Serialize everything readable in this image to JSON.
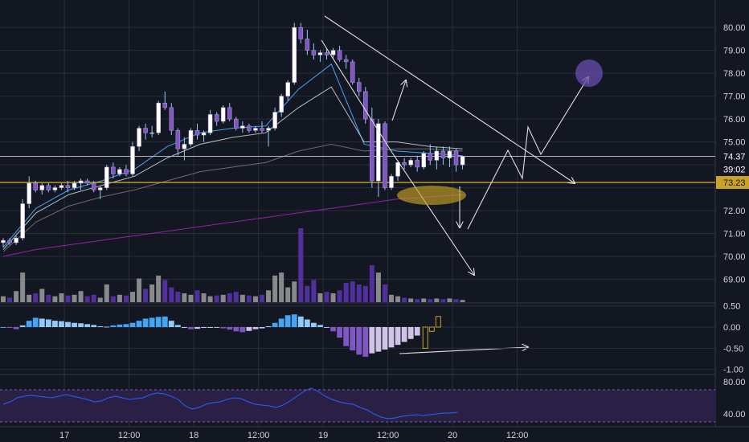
{
  "chart_data": {
    "type": "candlestick",
    "colors": {
      "background": "#131722",
      "grid": "#2a2e39",
      "up_body": "#ffffff",
      "down_body": "#7e57c2",
      "wick": "#90caf9",
      "axis_text": "#d1d4dc",
      "support_line": "#c9a227",
      "price_line": "#b2b5be",
      "annotation": "#e0e0e0",
      "volume_up": "#9e9e9e",
      "volume_down": "#5e35b1",
      "macd_pos_strong": "#42a5f5",
      "macd_pos_weak": "#90caf9",
      "macd_neg_strong": "#7e57c2",
      "macd_neg_weak": "#d1c4e9",
      "rsi_line": "#2962ff",
      "rsi_band": "#2a1f45"
    },
    "price_axis": {
      "ylim": [
        68.0,
        81.2
      ],
      "ticks": [
        "80.00",
        "79.00",
        "78.00",
        "77.00",
        "76.00",
        "75.00",
        "74.00",
        "73.00",
        "72.00",
        "71.00",
        "70.00",
        "69.00"
      ],
      "last_price_label": "74.37",
      "countdown_label": "39:02",
      "support_label": "73.23",
      "current_price": 74.37,
      "support_price": 73.23
    },
    "time_axis": {
      "labels": [
        "17",
        "12:00",
        "18",
        "12:00",
        "19",
        "12:00",
        "20",
        "12:00"
      ],
      "label_positions": [
        2,
        12,
        22,
        32,
        42,
        52,
        62,
        72
      ]
    },
    "candles": [
      [
        70.6,
        70.8,
        70.4,
        70.7
      ],
      [
        70.7,
        70.8,
        70.5,
        70.6
      ],
      [
        70.6,
        70.9,
        70.5,
        70.8
      ],
      [
        70.8,
        72.5,
        70.7,
        72.3
      ],
      [
        72.3,
        73.5,
        72.1,
        73.2
      ],
      [
        73.2,
        73.3,
        72.8,
        72.9
      ],
      [
        72.9,
        73.2,
        72.7,
        73.1
      ],
      [
        73.1,
        73.2,
        72.8,
        72.9
      ],
      [
        72.9,
        73.1,
        72.8,
        73.0
      ],
      [
        73.0,
        73.2,
        72.9,
        73.1
      ],
      [
        73.1,
        73.3,
        72.8,
        73.0
      ],
      [
        73.0,
        73.3,
        72.9,
        73.2
      ],
      [
        73.2,
        73.4,
        72.9,
        73.3
      ],
      [
        73.3,
        73.4,
        73.1,
        73.2
      ],
      [
        73.2,
        73.3,
        72.8,
        72.9
      ],
      [
        72.9,
        73.1,
        72.5,
        73.0
      ],
      [
        73.0,
        74.0,
        72.9,
        73.9
      ],
      [
        73.9,
        74.1,
        73.4,
        73.6
      ],
      [
        73.6,
        73.9,
        73.5,
        73.8
      ],
      [
        73.8,
        74.0,
        73.5,
        73.6
      ],
      [
        73.6,
        75.0,
        73.5,
        74.8
      ],
      [
        74.8,
        75.7,
        74.6,
        75.6
      ],
      [
        75.6,
        75.8,
        75.1,
        75.4
      ],
      [
        75.4,
        75.7,
        75.2,
        75.4
      ],
      [
        75.4,
        76.8,
        75.3,
        76.7
      ],
      [
        76.7,
        77.2,
        76.4,
        76.5
      ],
      [
        76.5,
        76.7,
        75.3,
        75.5
      ],
      [
        75.5,
        75.6,
        74.4,
        74.7
      ],
      [
        74.7,
        75.2,
        74.2,
        74.9
      ],
      [
        74.9,
        75.6,
        74.8,
        75.5
      ],
      [
        75.5,
        75.8,
        75.1,
        75.3
      ],
      [
        75.3,
        75.5,
        75.0,
        75.4
      ],
      [
        75.4,
        76.4,
        75.3,
        76.2
      ],
      [
        76.2,
        76.3,
        75.7,
        75.9
      ],
      [
        75.9,
        76.6,
        75.8,
        76.5
      ],
      [
        76.5,
        76.7,
        75.9,
        76.0
      ],
      [
        76.0,
        76.1,
        75.5,
        75.6
      ],
      [
        75.6,
        75.9,
        75.4,
        75.7
      ],
      [
        75.7,
        75.8,
        75.4,
        75.5
      ],
      [
        75.5,
        75.7,
        75.4,
        75.6
      ],
      [
        75.6,
        75.9,
        75.4,
        75.5
      ],
      [
        75.5,
        75.7,
        74.8,
        75.6
      ],
      [
        75.6,
        76.5,
        75.5,
        76.3
      ],
      [
        76.3,
        77.1,
        76.1,
        77.0
      ],
      [
        77.0,
        77.7,
        76.8,
        77.6
      ],
      [
        77.6,
        80.2,
        77.5,
        80.0
      ],
      [
        80.0,
        80.2,
        79.3,
        79.5
      ],
      [
        79.5,
        79.9,
        78.8,
        79.0
      ],
      [
        79.0,
        79.3,
        78.6,
        78.8
      ],
      [
        78.8,
        79.0,
        78.5,
        78.9
      ],
      [
        78.9,
        79.1,
        78.6,
        78.8
      ],
      [
        78.8,
        79.1,
        78.6,
        79.0
      ],
      [
        79.0,
        79.2,
        78.5,
        78.6
      ],
      [
        78.6,
        78.8,
        78.2,
        78.5
      ],
      [
        78.5,
        78.6,
        77.5,
        77.6
      ],
      [
        77.6,
        77.8,
        77.0,
        77.2
      ],
      [
        77.2,
        77.4,
        75.8,
        76.0
      ],
      [
        76.0,
        76.5,
        73.0,
        73.3
      ],
      [
        73.3,
        76.0,
        72.6,
        75.8
      ],
      [
        75.8,
        75.9,
        72.9,
        73.0
      ],
      [
        73.0,
        73.6,
        72.9,
        73.5
      ],
      [
        73.5,
        74.2,
        73.3,
        74.1
      ],
      [
        74.1,
        74.3,
        73.8,
        74.0
      ],
      [
        74.0,
        74.3,
        73.9,
        74.2
      ],
      [
        74.2,
        74.4,
        73.7,
        73.9
      ],
      [
        73.9,
        74.6,
        73.8,
        74.5
      ],
      [
        74.5,
        74.9,
        74.0,
        74.2
      ],
      [
        74.2,
        74.8,
        73.8,
        74.6
      ],
      [
        74.6,
        74.8,
        74.0,
        74.3
      ],
      [
        74.3,
        74.8,
        73.9,
        74.6
      ],
      [
        74.6,
        74.7,
        73.7,
        74.0
      ],
      [
        74.0,
        74.4,
        73.8,
        74.37
      ]
    ],
    "moving_averages": [
      {
        "color": "#42a5f5",
        "values": [
          70.4,
          72.1,
          72.9,
          73.3,
          73.8,
          74.8,
          75.4,
          75.6,
          75.7,
          77.3,
          78.4,
          74.9,
          74.6,
          74.5,
          74.4
        ]
      },
      {
        "color": "#b0bec5",
        "values": [
          70.3,
          71.9,
          72.7,
          73.1,
          73.5,
          74.3,
          74.9,
          75.2,
          75.4,
          76.5,
          77.4,
          75.0,
          75.0,
          74.8,
          74.7
        ]
      },
      {
        "color": "#6d6d6d",
        "values": [
          70.2,
          71.5,
          72.2,
          72.6,
          72.9,
          73.3,
          73.7,
          73.9,
          74.1,
          74.6,
          74.9,
          74.6,
          74.7,
          74.7,
          74.6
        ]
      },
      {
        "color": "#8e24aa",
        "values": [
          70.0,
          70.3,
          70.5,
          70.7,
          70.9,
          71.1,
          71.3,
          71.5,
          71.7,
          71.9,
          72.1,
          72.3,
          72.5,
          72.6,
          72.7
        ]
      }
    ],
    "volume": [
      8,
      6,
      15,
      40,
      10,
      12,
      18,
      10,
      8,
      12,
      9,
      10,
      15,
      8,
      10,
      6,
      24,
      8,
      10,
      9,
      14,
      32,
      18,
      24,
      36,
      30,
      20,
      14,
      12,
      10,
      16,
      12,
      8,
      9,
      10,
      12,
      14,
      10,
      9,
      8,
      10,
      16,
      36,
      40,
      20,
      28,
      100,
      22,
      30,
      12,
      14,
      12,
      16,
      26,
      28,
      24,
      22,
      50,
      40,
      24,
      10,
      8,
      6,
      5,
      4,
      5,
      4,
      5,
      4,
      5,
      4,
      3
    ],
    "macd_axis": {
      "ticks": [
        "0.50",
        "0.00",
        "-0.50",
        "-1.00"
      ],
      "ylim": [
        -1.1,
        0.55
      ]
    },
    "macd_hist": [
      0.0,
      -0.02,
      -0.05,
      0.04,
      0.15,
      0.22,
      0.2,
      0.18,
      0.15,
      0.14,
      0.12,
      0.1,
      0.09,
      0.07,
      0.05,
      0.02,
      0.01,
      0.04,
      0.06,
      0.07,
      0.1,
      0.15,
      0.2,
      0.22,
      0.24,
      0.25,
      0.15,
      0.05,
      -0.02,
      -0.05,
      -0.04,
      -0.02,
      -0.01,
      0.0,
      -0.03,
      -0.06,
      -0.1,
      -0.12,
      -0.09,
      -0.05,
      -0.03,
      0.02,
      0.1,
      0.2,
      0.28,
      0.3,
      0.25,
      0.18,
      0.1,
      0.05,
      0.0,
      -0.1,
      -0.25,
      -0.45,
      -0.55,
      -0.65,
      -0.7,
      -0.62,
      -0.58,
      -0.53,
      -0.48,
      -0.42,
      -0.35,
      -0.28,
      -0.2
    ],
    "macd_projection": [
      -0.5,
      -0.1,
      0.25
    ],
    "rsi_axis": {
      "ticks": [
        "80.00",
        "40.00"
      ],
      "ylim": [
        25,
        88
      ],
      "band": [
        30,
        70
      ]
    },
    "rsi": [
      52,
      55,
      60,
      62,
      63,
      62,
      61,
      60,
      62,
      64,
      62,
      60,
      58,
      55,
      56,
      60,
      62,
      60,
      58,
      59,
      60,
      64,
      66,
      65,
      62,
      58,
      50,
      46,
      48,
      52,
      54,
      55,
      58,
      60,
      59,
      55,
      52,
      51,
      50,
      48,
      51,
      56,
      62,
      68,
      72,
      68,
      62,
      58,
      55,
      53,
      52,
      48,
      45,
      40,
      36,
      34,
      35,
      37,
      38,
      39,
      38,
      39,
      40,
      41,
      41,
      42
    ]
  }
}
